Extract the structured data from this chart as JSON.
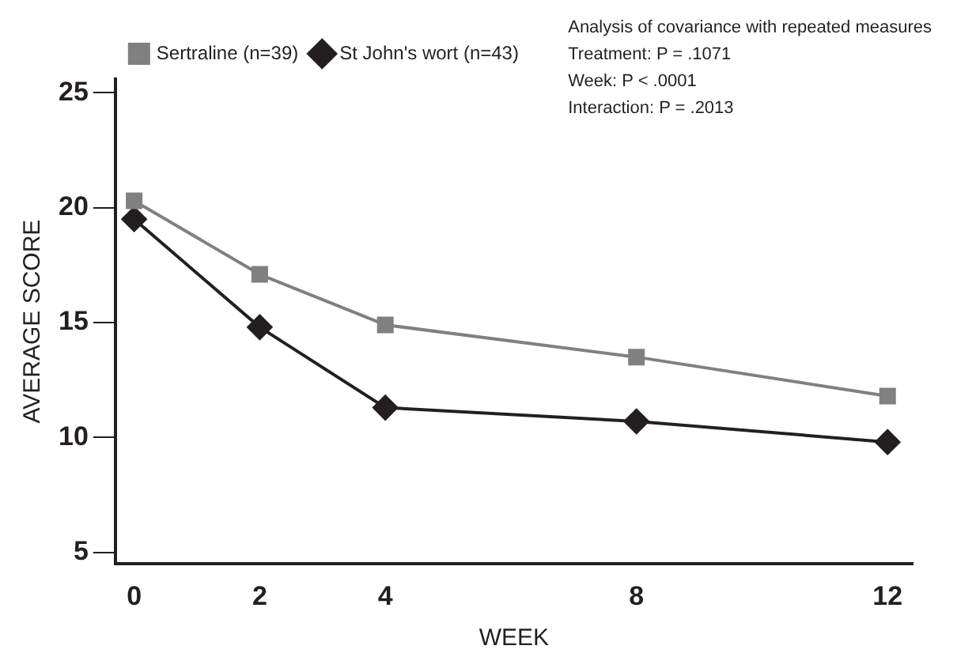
{
  "chart_data": {
    "type": "line",
    "xlabel": "WEEK",
    "ylabel": "AVERAGE SCORE",
    "x": [
      0,
      2,
      4,
      8,
      12
    ],
    "series": [
      {
        "name": "Sertraline (n=39)",
        "color": "#808080",
        "marker": "square",
        "values": [
          20.3,
          17.1,
          14.9,
          13.5,
          11.8
        ]
      },
      {
        "name": "St John's wort (n=43)",
        "color": "#231f20",
        "marker": "diamond",
        "values": [
          19.5,
          14.8,
          11.3,
          10.7,
          9.8
        ]
      }
    ],
    "xlim": [
      -0.3,
      12.4
    ],
    "xticks": [
      0,
      2,
      4,
      8,
      12
    ],
    "ylim": [
      4.5,
      25.6
    ],
    "yticks": [
      5,
      10,
      15,
      20,
      25
    ],
    "grid": false,
    "legend": "top left",
    "annotations": [
      "Analysis of covariance with repeated measures",
      "Treatment: P = .1071",
      "Week: P < .0001",
      "Interaction: P = .2013"
    ]
  }
}
